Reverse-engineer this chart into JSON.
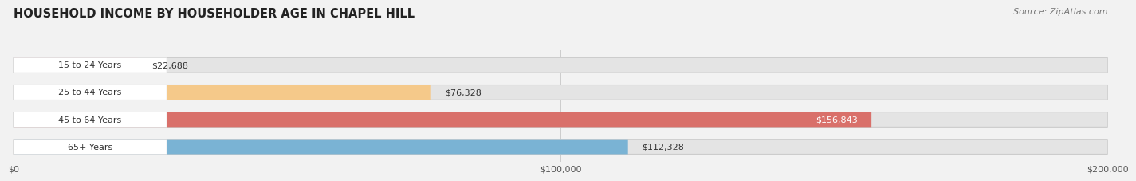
{
  "title": "HOUSEHOLD INCOME BY HOUSEHOLDER AGE IN CHAPEL HILL",
  "source": "Source: ZipAtlas.com",
  "categories": [
    "15 to 24 Years",
    "25 to 44 Years",
    "45 to 64 Years",
    "65+ Years"
  ],
  "values": [
    22688,
    76328,
    156843,
    112328
  ],
  "bar_colors": [
    "#f2aab8",
    "#f5c98a",
    "#d9706a",
    "#7ab3d4"
  ],
  "label_colors": [
    "#444444",
    "#444444",
    "#ffffff",
    "#444444"
  ],
  "xlim": [
    0,
    200000
  ],
  "xtick_values": [
    0,
    100000,
    200000
  ],
  "xtick_labels": [
    "$0",
    "$100,000",
    "$200,000"
  ],
  "background_color": "#f2f2f2",
  "bar_bg_color": "#e4e4e4",
  "title_fontsize": 10.5,
  "source_fontsize": 8,
  "tick_fontsize": 8,
  "label_fontsize": 8,
  "value_fontsize": 8,
  "bar_height": 0.55,
  "fig_width": 14.06,
  "fig_height": 2.33
}
